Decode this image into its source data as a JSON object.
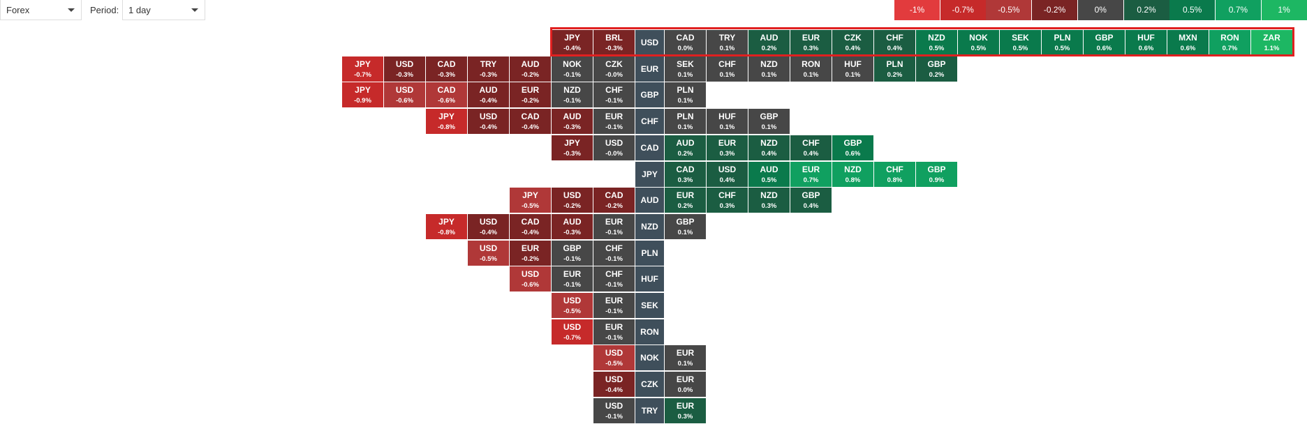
{
  "controls": {
    "market": "Forex",
    "period_label": "Period:",
    "period": "1 day"
  },
  "scale": [
    {
      "value": -1,
      "label": "-1%",
      "color": "#e23b3d"
    },
    {
      "value": -0.7,
      "label": "-0.7%",
      "color": "#c62a2a"
    },
    {
      "value": -0.5,
      "label": "-0.5%",
      "color": "#b03838"
    },
    {
      "value": -0.2,
      "label": "-0.2%",
      "color": "#7a2424"
    },
    {
      "value": 0,
      "label": "0%",
      "color": "#474747"
    },
    {
      "value": 0.2,
      "label": "0.2%",
      "color": "#1b5d42"
    },
    {
      "value": 0.5,
      "label": "0.5%",
      "color": "#0a7a4c"
    },
    {
      "value": 0.7,
      "label": "0.7%",
      "color": "#10a060"
    },
    {
      "value": 1,
      "label": "1%",
      "color": "#1db763"
    }
  ],
  "rows": [
    {
      "base": "USD",
      "left": [
        {
          "currency": "JPY",
          "value": -0.4,
          "label": "-0.4%"
        },
        {
          "currency": "BRL",
          "value": -0.3,
          "label": "-0.3%"
        }
      ],
      "right": [
        {
          "currency": "CAD",
          "value": 0,
          "label": "0.0%"
        },
        {
          "currency": "TRY",
          "value": 0.1,
          "label": "0.1%"
        },
        {
          "currency": "AUD",
          "value": 0.2,
          "label": "0.2%"
        },
        {
          "currency": "EUR",
          "value": 0.3,
          "label": "0.3%"
        },
        {
          "currency": "CZK",
          "value": 0.4,
          "label": "0.4%"
        },
        {
          "currency": "CHF",
          "value": 0.4,
          "label": "0.4%"
        },
        {
          "currency": "NZD",
          "value": 0.5,
          "label": "0.5%"
        },
        {
          "currency": "NOK",
          "value": 0.5,
          "label": "0.5%"
        },
        {
          "currency": "SEK",
          "value": 0.5,
          "label": "0.5%"
        },
        {
          "currency": "PLN",
          "value": 0.5,
          "label": "0.5%"
        },
        {
          "currency": "GBP",
          "value": 0.6,
          "label": "0.6%"
        },
        {
          "currency": "HUF",
          "value": 0.6,
          "label": "0.6%"
        },
        {
          "currency": "MXN",
          "value": 0.6,
          "label": "0.6%"
        },
        {
          "currency": "RON",
          "value": 0.7,
          "label": "0.7%"
        },
        {
          "currency": "ZAR",
          "value": 1.1,
          "label": "1.1%"
        }
      ]
    },
    {
      "base": "EUR",
      "left": [
        {
          "currency": "JPY",
          "value": -0.7,
          "label": "-0.7%"
        },
        {
          "currency": "USD",
          "value": -0.3,
          "label": "-0.3%"
        },
        {
          "currency": "CAD",
          "value": -0.3,
          "label": "-0.3%"
        },
        {
          "currency": "TRY",
          "value": -0.3,
          "label": "-0.3%"
        },
        {
          "currency": "AUD",
          "value": -0.2,
          "label": "-0.2%"
        },
        {
          "currency": "NOK",
          "value": -0.1,
          "label": "-0.1%"
        },
        {
          "currency": "CZK",
          "value": 0,
          "label": "-0.0%"
        }
      ],
      "right": [
        {
          "currency": "SEK",
          "value": 0.1,
          "label": "0.1%"
        },
        {
          "currency": "CHF",
          "value": 0.1,
          "label": "0.1%"
        },
        {
          "currency": "NZD",
          "value": 0.1,
          "label": "0.1%"
        },
        {
          "currency": "RON",
          "value": 0.1,
          "label": "0.1%"
        },
        {
          "currency": "HUF",
          "value": 0.1,
          "label": "0.1%"
        },
        {
          "currency": "PLN",
          "value": 0.2,
          "label": "0.2%"
        },
        {
          "currency": "GBP",
          "value": 0.2,
          "label": "0.2%"
        }
      ]
    },
    {
      "base": "GBP",
      "left": [
        {
          "currency": "JPY",
          "value": -0.9,
          "label": "-0.9%"
        },
        {
          "currency": "USD",
          "value": -0.6,
          "label": "-0.6%"
        },
        {
          "currency": "CAD",
          "value": -0.6,
          "label": "-0.6%"
        },
        {
          "currency": "AUD",
          "value": -0.4,
          "label": "-0.4%"
        },
        {
          "currency": "EUR",
          "value": -0.2,
          "label": "-0.2%"
        },
        {
          "currency": "NZD",
          "value": -0.1,
          "label": "-0.1%"
        },
        {
          "currency": "CHF",
          "value": -0.1,
          "label": "-0.1%"
        }
      ],
      "right": [
        {
          "currency": "PLN",
          "value": 0.1,
          "label": "0.1%"
        }
      ]
    },
    {
      "base": "CHF",
      "left": [
        {
          "currency": "JPY",
          "value": -0.8,
          "label": "-0.8%"
        },
        {
          "currency": "USD",
          "value": -0.4,
          "label": "-0.4%"
        },
        {
          "currency": "CAD",
          "value": -0.4,
          "label": "-0.4%"
        },
        {
          "currency": "AUD",
          "value": -0.3,
          "label": "-0.3%"
        },
        {
          "currency": "EUR",
          "value": -0.1,
          "label": "-0.1%"
        }
      ],
      "right": [
        {
          "currency": "PLN",
          "value": 0.1,
          "label": "0.1%"
        },
        {
          "currency": "HUF",
          "value": 0.1,
          "label": "0.1%"
        },
        {
          "currency": "GBP",
          "value": 0.1,
          "label": "0.1%"
        }
      ]
    },
    {
      "base": "CAD",
      "left": [
        {
          "currency": "JPY",
          "value": -0.3,
          "label": "-0.3%"
        },
        {
          "currency": "USD",
          "value": 0,
          "label": "-0.0%"
        }
      ],
      "right": [
        {
          "currency": "AUD",
          "value": 0.2,
          "label": "0.2%"
        },
        {
          "currency": "EUR",
          "value": 0.3,
          "label": "0.3%"
        },
        {
          "currency": "NZD",
          "value": 0.4,
          "label": "0.4%"
        },
        {
          "currency": "CHF",
          "value": 0.4,
          "label": "0.4%"
        },
        {
          "currency": "GBP",
          "value": 0.6,
          "label": "0.6%"
        }
      ]
    },
    {
      "base": "JPY",
      "left": [],
      "right": [
        {
          "currency": "CAD",
          "value": 0.3,
          "label": "0.3%"
        },
        {
          "currency": "USD",
          "value": 0.4,
          "label": "0.4%"
        },
        {
          "currency": "AUD",
          "value": 0.5,
          "label": "0.5%"
        },
        {
          "currency": "EUR",
          "value": 0.7,
          "label": "0.7%"
        },
        {
          "currency": "NZD",
          "value": 0.8,
          "label": "0.8%"
        },
        {
          "currency": "CHF",
          "value": 0.8,
          "label": "0.8%"
        },
        {
          "currency": "GBP",
          "value": 0.9,
          "label": "0.9%"
        }
      ]
    },
    {
      "base": "AUD",
      "left": [
        {
          "currency": "JPY",
          "value": -0.5,
          "label": "-0.5%"
        },
        {
          "currency": "USD",
          "value": -0.2,
          "label": "-0.2%"
        },
        {
          "currency": "CAD",
          "value": -0.2,
          "label": "-0.2%"
        }
      ],
      "right": [
        {
          "currency": "EUR",
          "value": 0.2,
          "label": "0.2%"
        },
        {
          "currency": "CHF",
          "value": 0.3,
          "label": "0.3%"
        },
        {
          "currency": "NZD",
          "value": 0.3,
          "label": "0.3%"
        },
        {
          "currency": "GBP",
          "value": 0.4,
          "label": "0.4%"
        }
      ]
    },
    {
      "base": "NZD",
      "left": [
        {
          "currency": "JPY",
          "value": -0.8,
          "label": "-0.8%"
        },
        {
          "currency": "USD",
          "value": -0.4,
          "label": "-0.4%"
        },
        {
          "currency": "CAD",
          "value": -0.4,
          "label": "-0.4%"
        },
        {
          "currency": "AUD",
          "value": -0.3,
          "label": "-0.3%"
        },
        {
          "currency": "EUR",
          "value": -0.1,
          "label": "-0.1%"
        }
      ],
      "right": [
        {
          "currency": "GBP",
          "value": 0.1,
          "label": "0.1%"
        }
      ]
    },
    {
      "base": "PLN",
      "left": [
        {
          "currency": "USD",
          "value": -0.5,
          "label": "-0.5%"
        },
        {
          "currency": "EUR",
          "value": -0.2,
          "label": "-0.2%"
        },
        {
          "currency": "GBP",
          "value": -0.1,
          "label": "-0.1%"
        },
        {
          "currency": "CHF",
          "value": -0.1,
          "label": "-0.1%"
        }
      ],
      "right": []
    },
    {
      "base": "HUF",
      "left": [
        {
          "currency": "USD",
          "value": -0.6,
          "label": "-0.6%"
        },
        {
          "currency": "EUR",
          "value": -0.1,
          "label": "-0.1%"
        },
        {
          "currency": "CHF",
          "value": -0.1,
          "label": "-0.1%"
        }
      ],
      "right": []
    },
    {
      "base": "SEK",
      "left": [
        {
          "currency": "USD",
          "value": -0.5,
          "label": "-0.5%"
        },
        {
          "currency": "EUR",
          "value": -0.1,
          "label": "-0.1%"
        }
      ],
      "right": []
    },
    {
      "base": "RON",
      "left": [
        {
          "currency": "USD",
          "value": -0.7,
          "label": "-0.7%"
        },
        {
          "currency": "EUR",
          "value": -0.1,
          "label": "-0.1%"
        }
      ],
      "right": []
    },
    {
      "base": "NOK",
      "left": [
        {
          "currency": "USD",
          "value": -0.5,
          "label": "-0.5%"
        }
      ],
      "right": [
        {
          "currency": "EUR",
          "value": 0.1,
          "label": "0.1%"
        }
      ]
    },
    {
      "base": "CZK",
      "left": [
        {
          "currency": "USD",
          "value": -0.4,
          "label": "-0.4%"
        }
      ],
      "right": [
        {
          "currency": "EUR",
          "value": 0,
          "label": "0.0%"
        }
      ]
    },
    {
      "base": "TRY",
      "left": [
        {
          "currency": "USD",
          "value": -0.1,
          "label": "-0.1%"
        }
      ],
      "right": [
        {
          "currency": "EUR",
          "value": 0.3,
          "label": "0.3%"
        }
      ]
    }
  ]
}
